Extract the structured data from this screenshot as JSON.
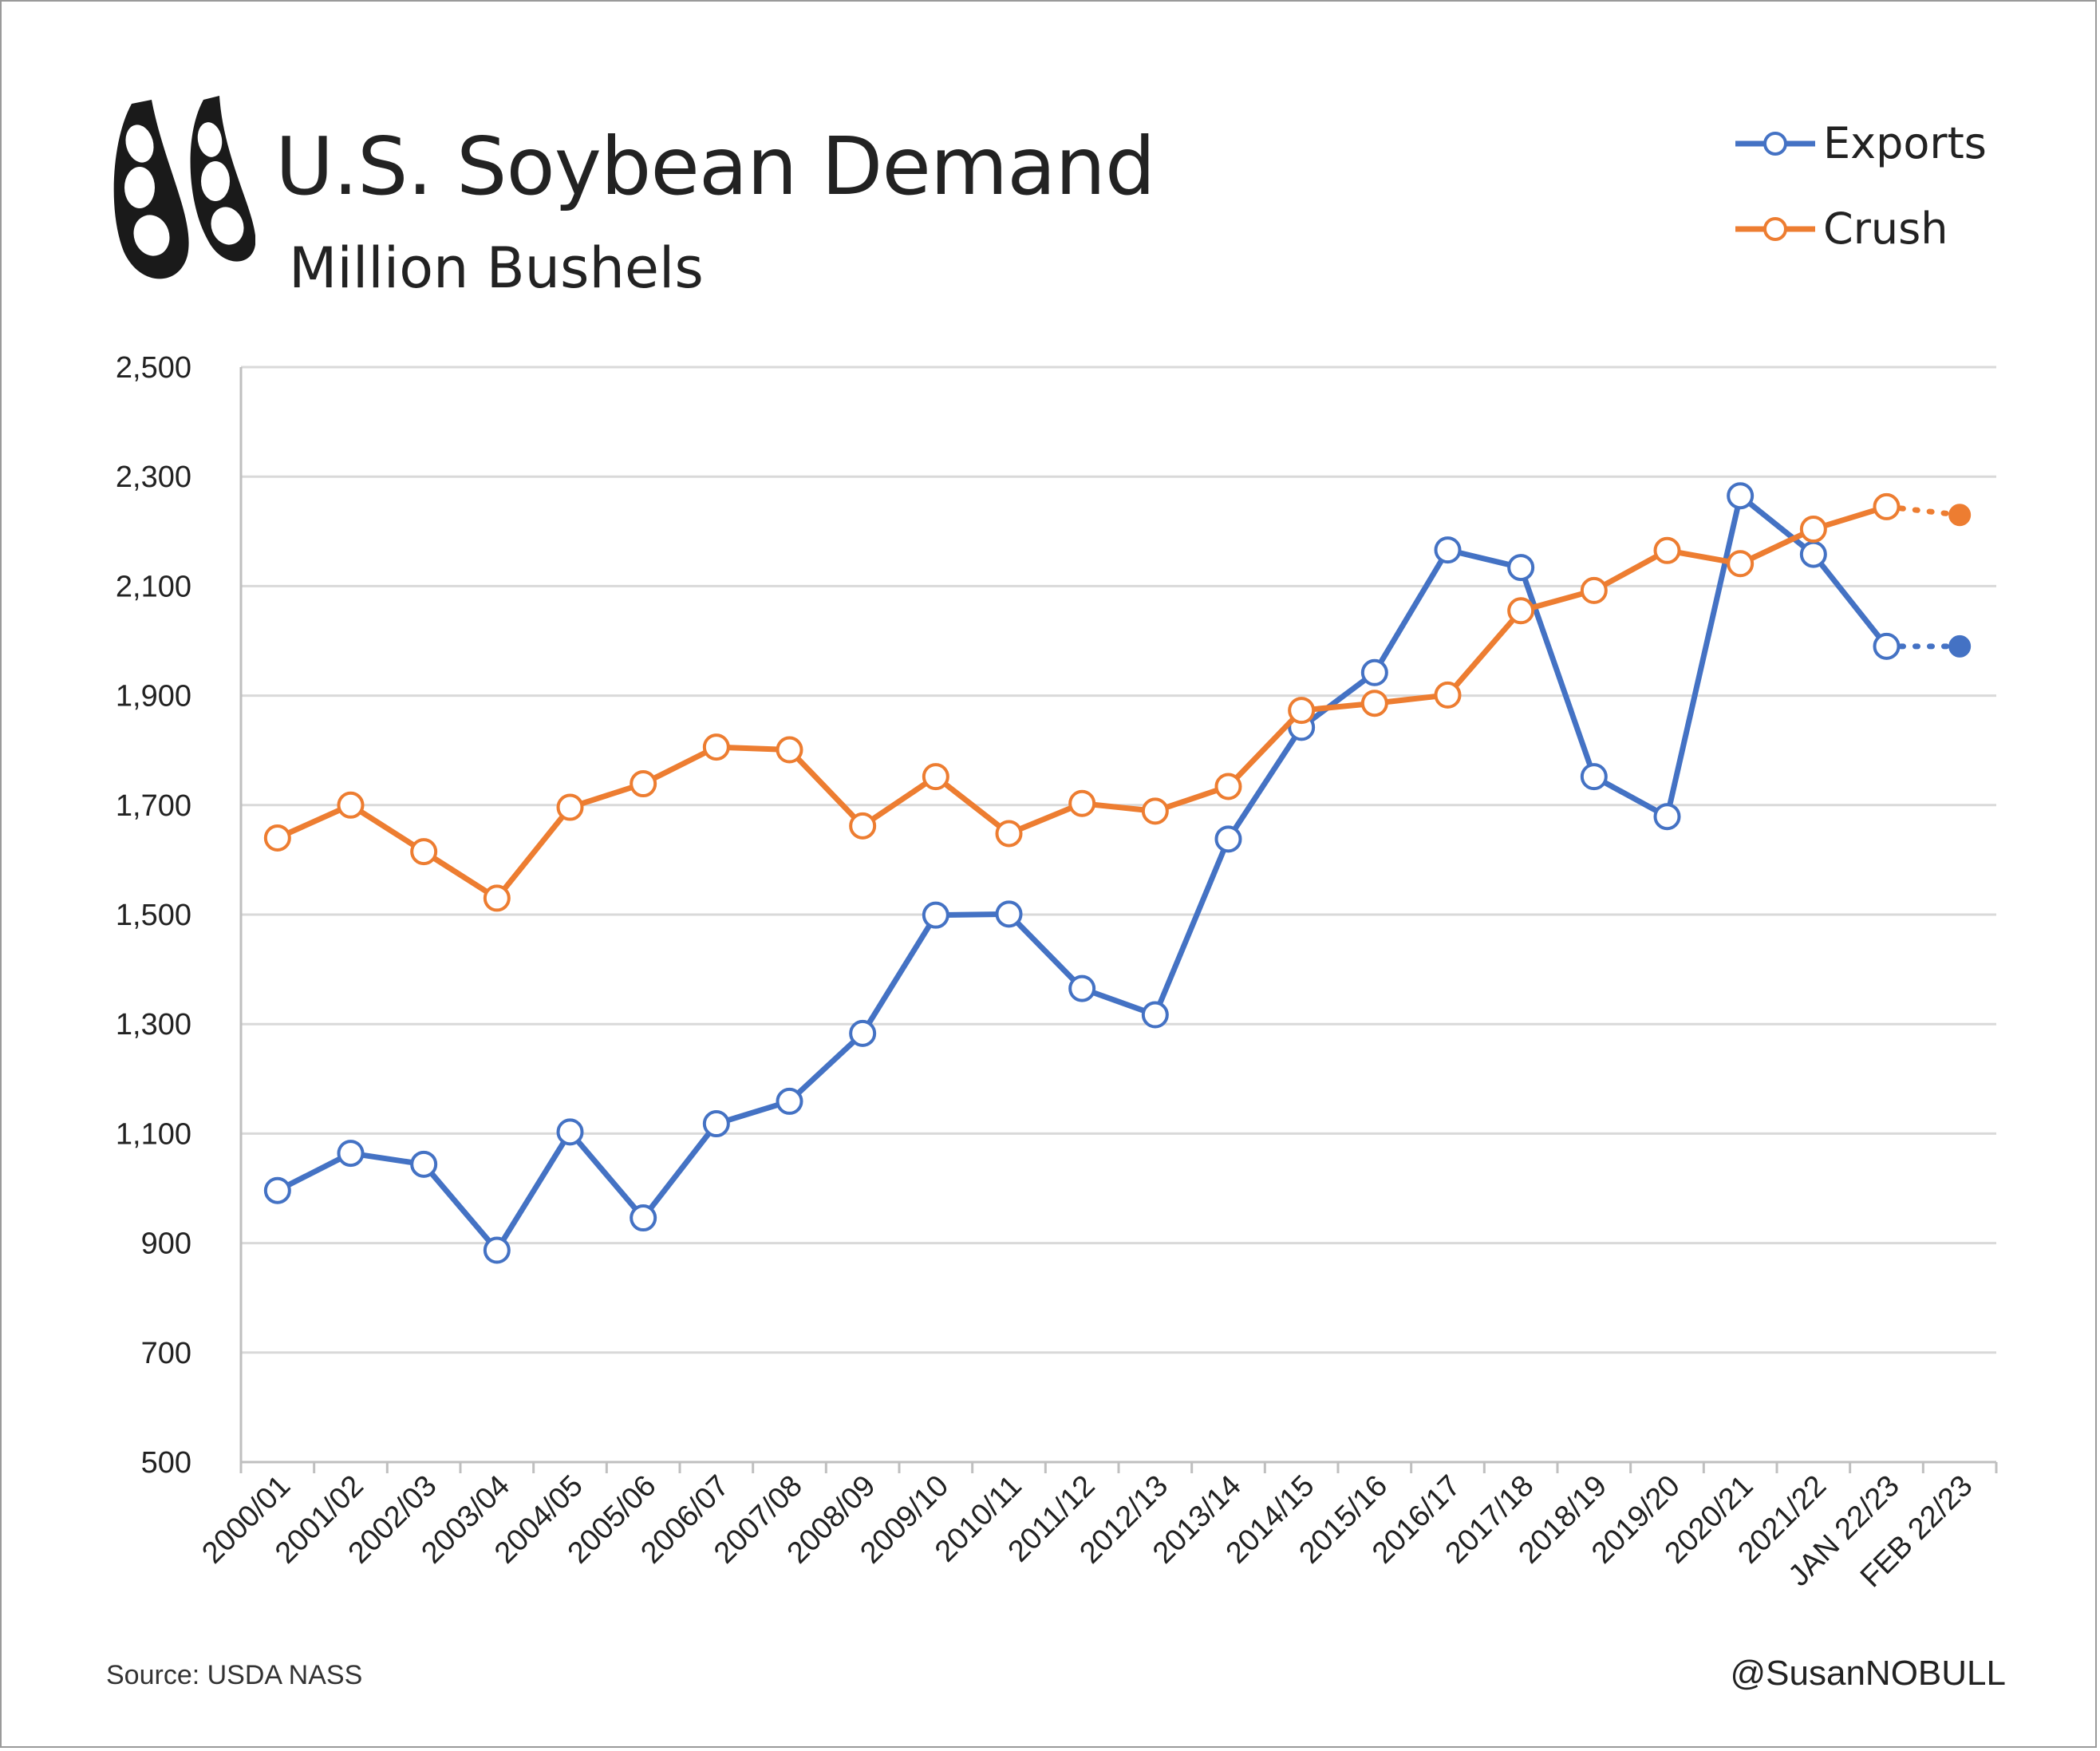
{
  "header": {
    "title": "U.S. Soybean Demand",
    "subtitle": "Million Bushels",
    "logo_icon": "soybean-pods-icon"
  },
  "footer": {
    "source": "Source: USDA NASS",
    "handle": "@SusanNOBULL"
  },
  "colors": {
    "exports": "#4472C4",
    "crush": "#ED7D31",
    "grid": "#d9d9d9",
    "axis": "#bfbfbf"
  },
  "chart_data": {
    "type": "line",
    "title": "U.S. Soybean Demand",
    "subtitle": "Million Bushels",
    "categories": [
      "2000/01",
      "2001/02",
      "2002/03",
      "2003/04",
      "2004/05",
      "2005/06",
      "2006/07",
      "2007/08",
      "2008/09",
      "2009/10",
      "2010/11",
      "2011/12",
      "2012/13",
      "2013/14",
      "2014/15",
      "2015/16",
      "2016/17",
      "2017/18",
      "2018/19",
      "2019/20",
      "2020/21",
      "2021/22",
      "JAN 22/23",
      "FEB 22/23"
    ],
    "yticks": [
      "2,500",
      "2,300",
      "2,100",
      "1,900",
      "1,700",
      "1,500",
      "1,300",
      "1,100",
      "900",
      "700",
      "500"
    ],
    "ylim": [
      500,
      2500
    ],
    "grid": true,
    "legend_position": "top-right",
    "series": [
      {
        "name": "Exports",
        "color": "#4472C4",
        "values": [
          996,
          1064,
          1044,
          887,
          1103,
          946,
          1118,
          1159,
          1283,
          1499,
          1501,
          1365,
          1317,
          1638,
          1842,
          1942,
          2166,
          2134,
          1752,
          1679,
          2265,
          2158,
          1990,
          1990
        ]
      },
      {
        "name": "Crush",
        "color": "#ED7D31",
        "values": [
          1640,
          1700,
          1615,
          1530,
          1696,
          1739,
          1806,
          1801,
          1662,
          1752,
          1648,
          1703,
          1689,
          1734,
          1873,
          1886,
          1901,
          2055,
          2092,
          2165,
          2141,
          2204,
          2245,
          2230
        ]
      }
    ]
  }
}
